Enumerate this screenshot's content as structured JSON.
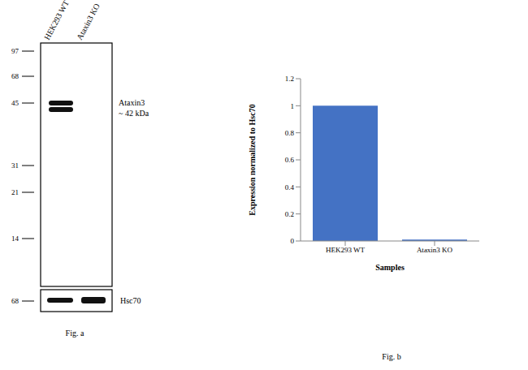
{
  "chart_data": {
    "type": "bar",
    "caption": "Fig. b",
    "x_label": "Samples",
    "y_label": "Expression normalized to Hsc70",
    "categories": [
      "HEK293 WT",
      "Ataxin3 KO"
    ],
    "values": [
      1,
      0.01
    ],
    "color": "#4472c4",
    "ylim": [
      0,
      1.2
    ],
    "yticks": [
      0,
      0.2,
      0.4,
      0.6,
      0.8,
      1,
      1.2
    ],
    "grid": false
  },
  "blot": {
    "caption": "Fig. a",
    "lanes": [
      "HEK293 WT",
      "Ataxin3 KO"
    ],
    "markers": [
      97,
      68,
      45,
      31,
      21,
      14
    ],
    "band_label": "Ataxin3",
    "band_size": "~ 42 kDa",
    "loading_marker": 68,
    "loading_label": "Hsc70"
  }
}
